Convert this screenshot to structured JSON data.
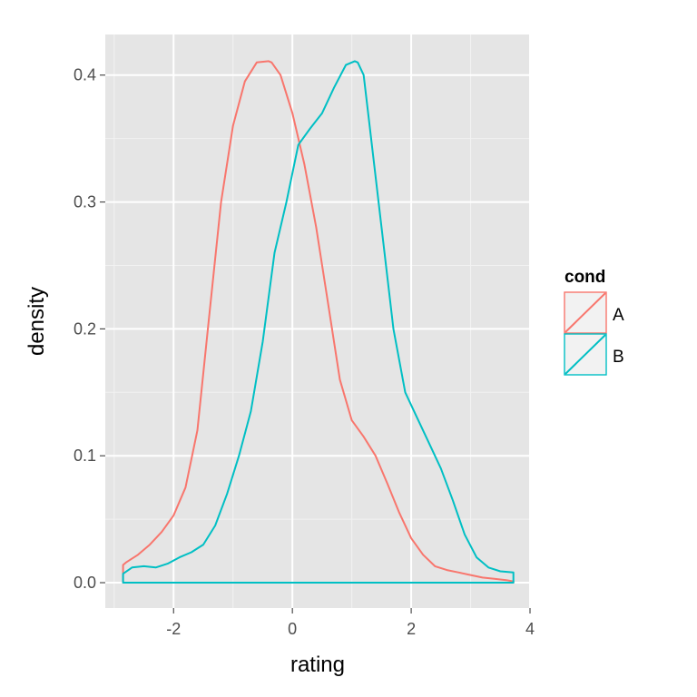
{
  "chart_data": {
    "type": "density",
    "xlabel": "rating",
    "ylabel": "density",
    "xlim": [
      -3.15,
      4.0
    ],
    "ylim": [
      -0.02,
      0.432
    ],
    "x_ticks": [
      -2,
      0,
      2,
      4
    ],
    "x_tick_labels": [
      "-2",
      "0",
      "2",
      "4"
    ],
    "y_ticks": [
      0.0,
      0.1,
      0.2,
      0.3,
      0.4
    ],
    "y_tick_labels": [
      "0.0",
      "0.1",
      "0.2",
      "0.3",
      "0.4"
    ],
    "grid": true,
    "legend": {
      "title": "cond",
      "position": "right"
    },
    "series": [
      {
        "name": "A",
        "color": "#F8766D",
        "x": [
          -2.85,
          -2.8,
          -2.6,
          -2.4,
          -2.2,
          -2.0,
          -1.8,
          -1.6,
          -1.4,
          -1.2,
          -1.0,
          -0.8,
          -0.6,
          -0.4,
          -0.35,
          -0.2,
          0.0,
          0.2,
          0.4,
          0.6,
          0.8,
          1.0,
          1.2,
          1.4,
          1.6,
          1.8,
          2.0,
          2.2,
          2.4,
          2.6,
          2.8,
          3.0,
          3.2,
          3.4,
          3.6,
          3.72
        ],
        "y": [
          0.014,
          0.016,
          0.022,
          0.03,
          0.04,
          0.053,
          0.075,
          0.12,
          0.21,
          0.3,
          0.36,
          0.395,
          0.41,
          0.411,
          0.41,
          0.4,
          0.37,
          0.33,
          0.28,
          0.22,
          0.16,
          0.128,
          0.115,
          0.1,
          0.078,
          0.055,
          0.035,
          0.022,
          0.013,
          0.01,
          0.008,
          0.006,
          0.004,
          0.003,
          0.002,
          0.001
        ]
      },
      {
        "name": "B",
        "color": "#00BFC4",
        "x": [
          -2.85,
          -2.7,
          -2.5,
          -2.3,
          -2.1,
          -1.9,
          -1.7,
          -1.5,
          -1.3,
          -1.1,
          -0.9,
          -0.7,
          -0.5,
          -0.3,
          -0.1,
          0.1,
          0.3,
          0.5,
          0.7,
          0.9,
          1.05,
          1.1,
          1.2,
          1.3,
          1.5,
          1.7,
          1.9,
          2.1,
          2.3,
          2.5,
          2.7,
          2.9,
          3.1,
          3.3,
          3.5,
          3.72
        ],
        "y": [
          0.007,
          0.012,
          0.013,
          0.012,
          0.015,
          0.02,
          0.024,
          0.03,
          0.045,
          0.07,
          0.1,
          0.135,
          0.19,
          0.26,
          0.3,
          0.345,
          0.358,
          0.37,
          0.39,
          0.408,
          0.411,
          0.41,
          0.4,
          0.36,
          0.28,
          0.2,
          0.15,
          0.13,
          0.11,
          0.09,
          0.065,
          0.038,
          0.02,
          0.012,
          0.009,
          0.008
        ]
      }
    ]
  }
}
